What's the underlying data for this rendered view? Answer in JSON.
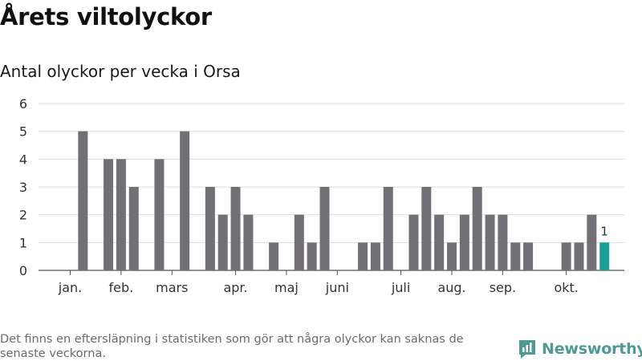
{
  "header": {
    "title": "Årets viltolyckor",
    "subtitle": "Antal olyckor per vecka i Orsa"
  },
  "footnote": "Det finns en eftersläpning i statistiken som gör att några olyckor kan saknas de senaste veckorna.",
  "brand": {
    "name": "Newsworthy",
    "icon": "chart-bars-logo-icon"
  },
  "colors": {
    "bar": "#727075",
    "highlight": "#1a9e96",
    "grid": "#dddddd",
    "axis": "#555555",
    "brand": "#4f9a94"
  },
  "chart_data": {
    "type": "bar",
    "x_unit": "week",
    "weeks": [
      1,
      2,
      3,
      4,
      5,
      6,
      7,
      8,
      9,
      10,
      11,
      12,
      13,
      14,
      15,
      16,
      17,
      18,
      19,
      20,
      21,
      22,
      23,
      24,
      25,
      26,
      27,
      28,
      29,
      30,
      31,
      32,
      33,
      34,
      35,
      36,
      37,
      38,
      39,
      40,
      41,
      42,
      43,
      44
    ],
    "values": [
      0,
      5,
      0,
      4,
      4,
      3,
      0,
      4,
      0,
      5,
      0,
      3,
      2,
      3,
      2,
      0,
      1,
      0,
      2,
      1,
      3,
      0,
      0,
      1,
      1,
      3,
      0,
      2,
      3,
      2,
      1,
      2,
      3,
      2,
      2,
      1,
      1,
      0,
      0,
      1,
      1,
      2,
      1,
      null
    ],
    "highlight_index": 42,
    "data_labels": [
      {
        "index": 42,
        "text": "1"
      }
    ],
    "month_labels": [
      {
        "label": "jan.",
        "week": 1
      },
      {
        "label": "feb.",
        "week": 5
      },
      {
        "label": "mars",
        "week": 9
      },
      {
        "label": "apr.",
        "week": 14
      },
      {
        "label": "maj",
        "week": 18
      },
      {
        "label": "juni",
        "week": 22
      },
      {
        "label": "juli",
        "week": 27
      },
      {
        "label": "aug.",
        "week": 31
      },
      {
        "label": "sep.",
        "week": 35
      },
      {
        "label": "okt.",
        "week": 40
      }
    ],
    "y_ticks": [
      0,
      1,
      2,
      3,
      4,
      5,
      6
    ],
    "ylim": [
      0,
      6
    ],
    "grid": true,
    "legend": "none"
  }
}
